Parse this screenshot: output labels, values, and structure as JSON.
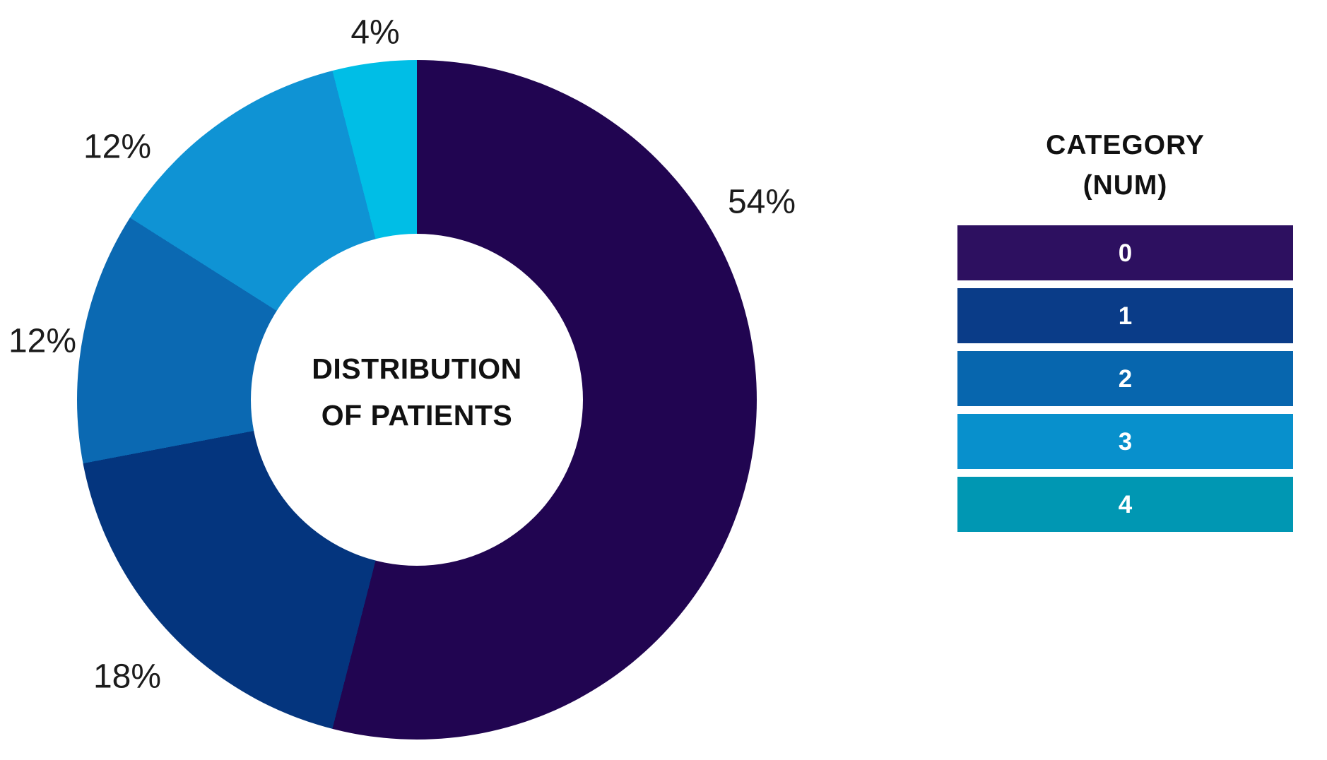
{
  "chart_data": {
    "type": "pie",
    "subtype": "donut",
    "title": "DISTRIBUTION OF PATIENTS",
    "center_label_lines": [
      "DISTRIBUTION",
      "OF PATIENTS"
    ],
    "categories": [
      "0",
      "1",
      "2",
      "3",
      "4"
    ],
    "values": [
      54,
      18,
      12,
      12,
      4
    ],
    "unit": "percent",
    "start_angle_deg": 0,
    "direction": "clockwise",
    "donut_hole_ratio": 0.49,
    "slices": [
      {
        "category": "0",
        "value": 54,
        "label": "54%",
        "color": "#210551"
      },
      {
        "category": "1",
        "value": 18,
        "label": "18%",
        "color": "#04357e"
      },
      {
        "category": "2",
        "value": 12,
        "label": "12%",
        "color": "#0b69b2"
      },
      {
        "category": "3",
        "value": 12,
        "label": "12%",
        "color": "#0f93d4"
      },
      {
        "category": "4",
        "value": 4,
        "label": "4%",
        "color": "#00bee6"
      }
    ],
    "legend": {
      "position": "right",
      "title_line1": "CATEGORY",
      "title_line2": "(NUM)",
      "entries": [
        {
          "label": "0",
          "color": "#2d1060"
        },
        {
          "label": "1",
          "color": "#0a3c88"
        },
        {
          "label": "2",
          "color": "#0766ae"
        },
        {
          "label": "3",
          "color": "#0890cc"
        },
        {
          "label": "4",
          "color": "#0097b3"
        }
      ]
    }
  }
}
